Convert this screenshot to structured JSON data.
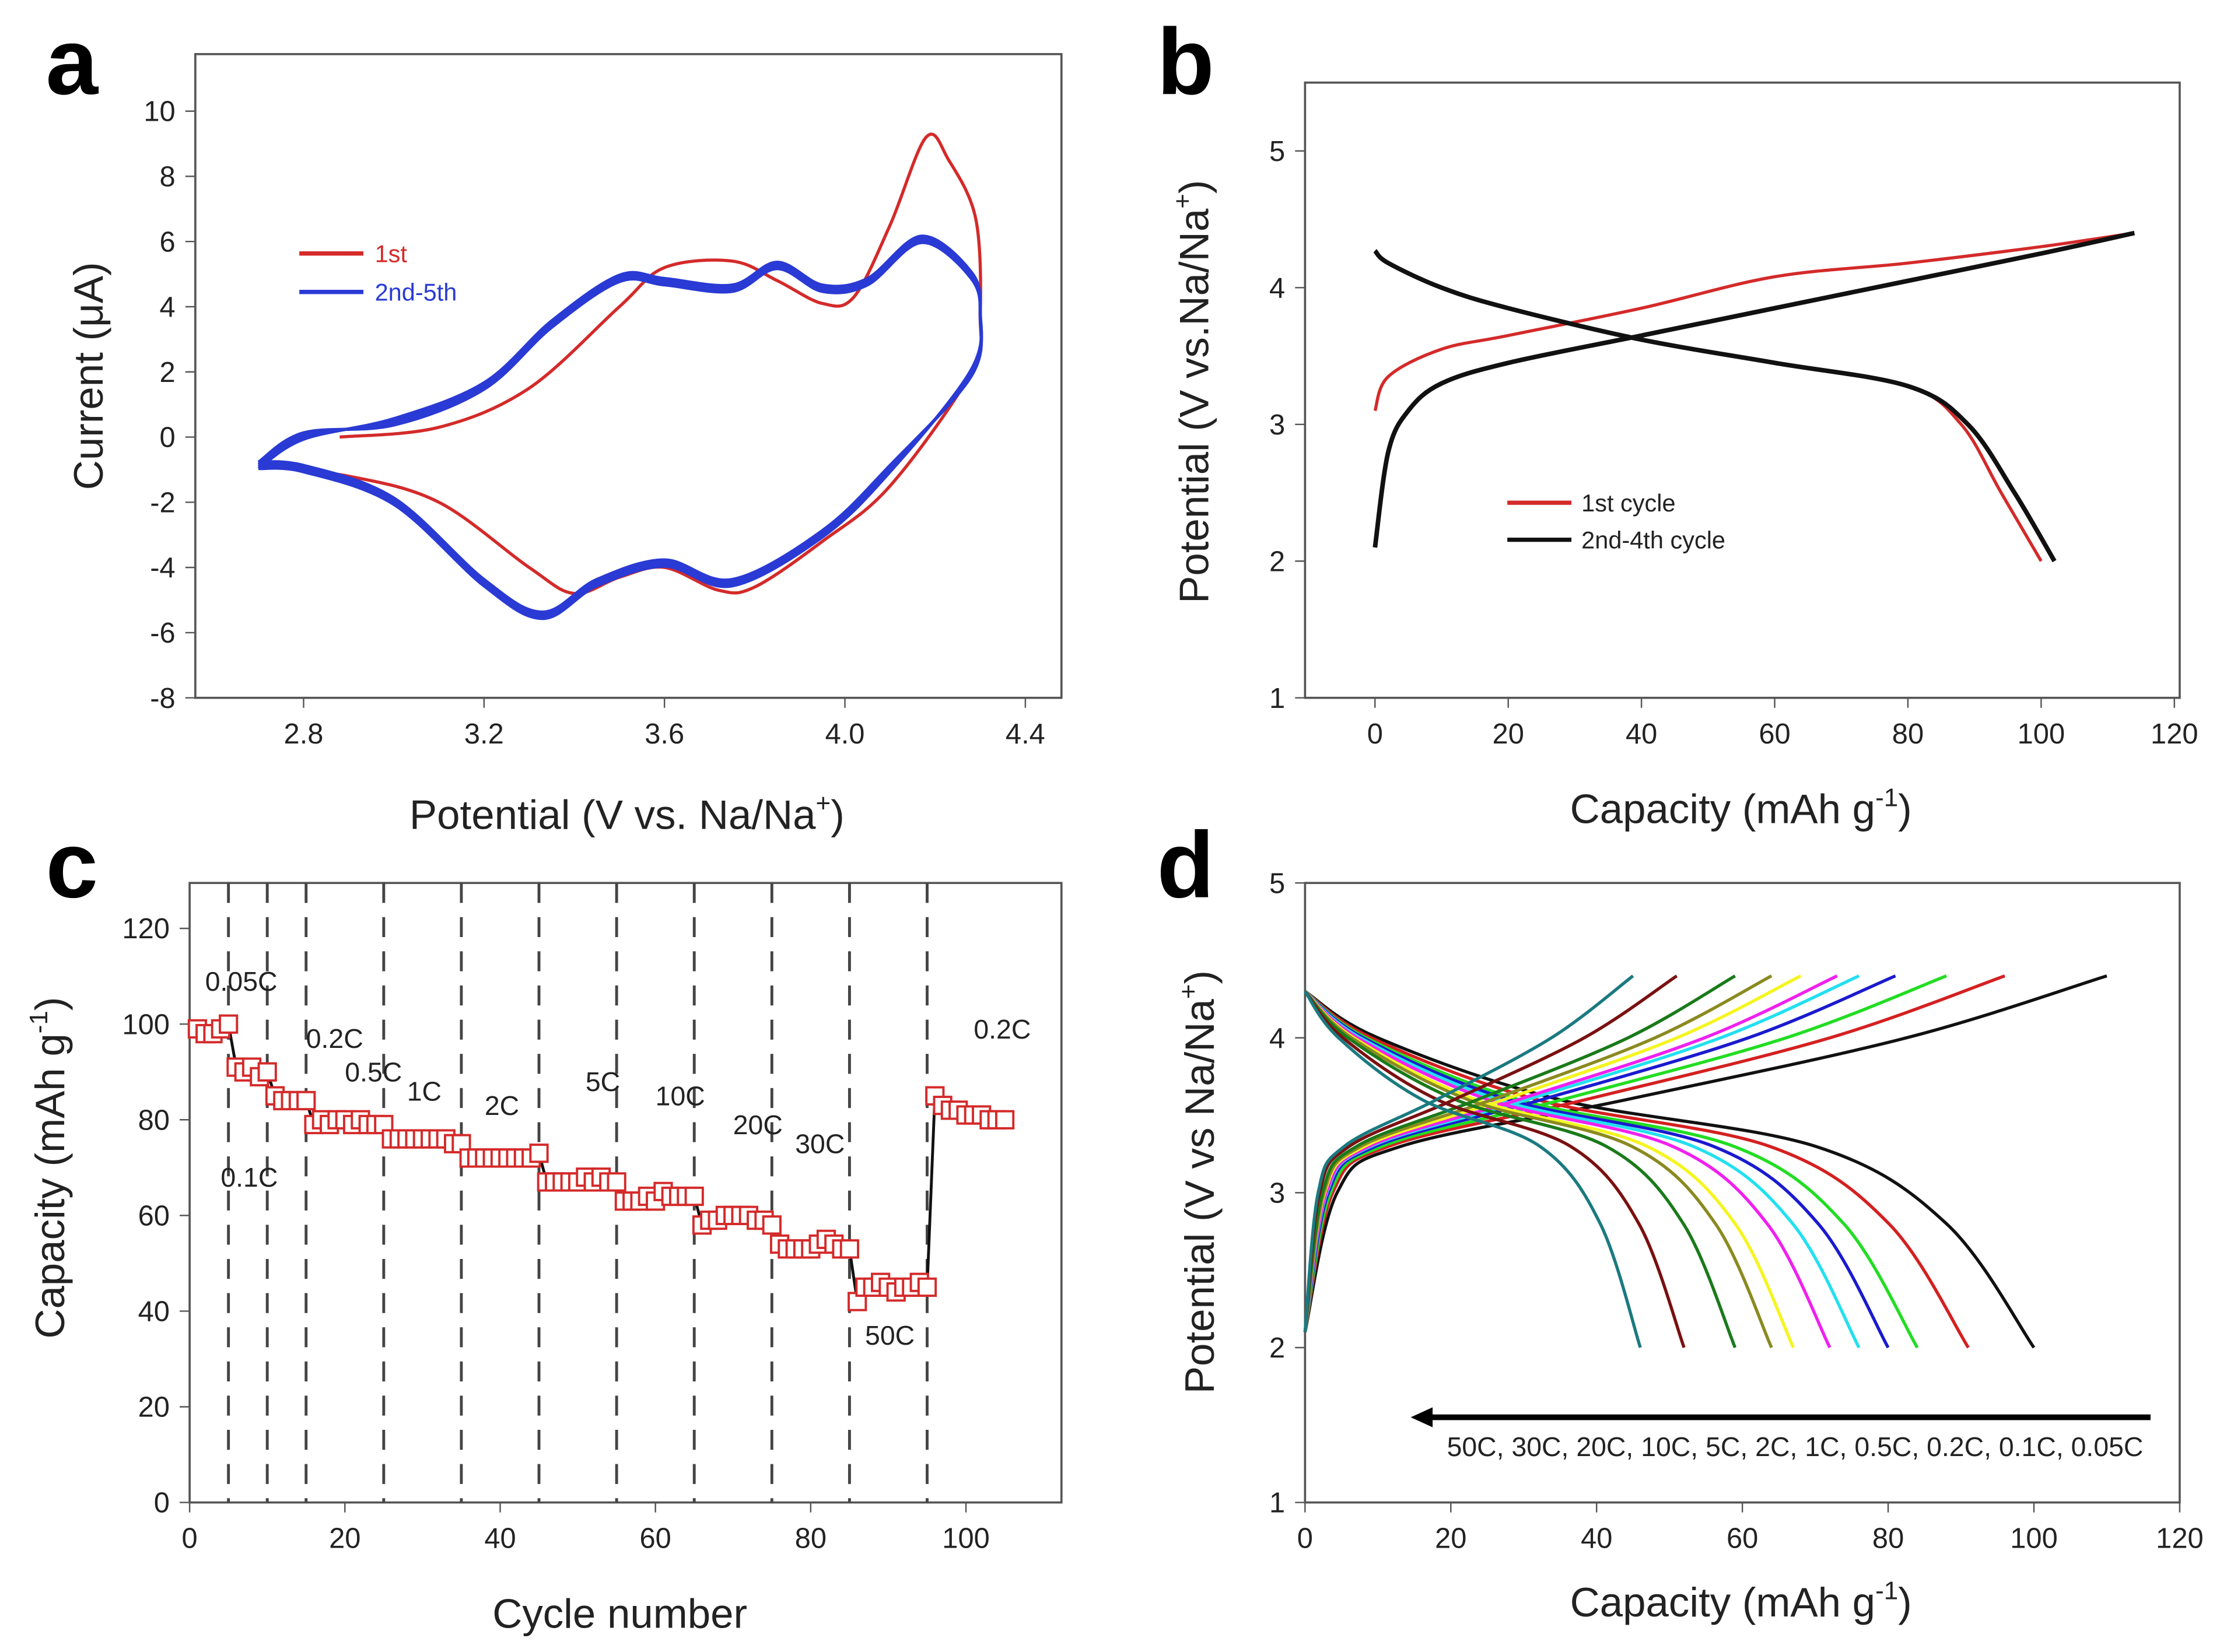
{
  "panels": [
    "a",
    "b",
    "c",
    "d"
  ],
  "chart_data": [
    {
      "type": "line",
      "panel": "a",
      "xlabel": "Potential (V vs. Na/Na",
      "xlabel_sup": "+",
      "xlabel_end": ")",
      "ylabel": "Current (μA)",
      "xlim": [
        2.56,
        4.48
      ],
      "ylim": [
        -8,
        11.75
      ],
      "xticks": [
        "2.8",
        "3.2",
        "3.6",
        "4.0",
        "4.4"
      ],
      "yticks": [
        "-8",
        "-6",
        "-4",
        "-2",
        "0",
        "2",
        "4",
        "6",
        "8",
        "10"
      ],
      "legend_position": "upper-left",
      "series": [
        {
          "name": "1st",
          "color": "#d42a2a",
          "x": [
            2.88,
            3.1,
            3.3,
            3.5,
            3.6,
            3.75,
            3.85,
            3.95,
            4.02,
            4.1,
            4.18,
            4.23,
            4.29,
            4.3,
            4.28,
            4.1,
            3.95,
            3.8,
            3.72,
            3.6,
            3.5,
            3.4,
            3.3,
            3.1,
            2.9,
            2.7
          ],
          "y": [
            0,
            0.3,
            1.5,
            4,
            5.2,
            5.4,
            4.8,
            4.1,
            4.3,
            6.5,
            9.2,
            8.5,
            6.7,
            3.8,
            2,
            -1.5,
            -3.2,
            -4.6,
            -4.7,
            -4.0,
            -4.3,
            -4.8,
            -4.0,
            -2,
            -1.2,
            -0.9
          ]
        },
        {
          "name": "2nd-5th",
          "color": "#2a3ad4",
          "x": [
            2.7,
            2.8,
            3.0,
            3.2,
            3.35,
            3.5,
            3.6,
            3.75,
            3.85,
            3.95,
            4.05,
            4.17,
            4.28,
            4.3,
            4.28,
            4.1,
            3.95,
            3.75,
            3.6,
            3.45,
            3.33,
            3.2,
            3.0,
            2.8,
            2.7
          ],
          "y": [
            -0.9,
            0,
            0.5,
            1.6,
            3.5,
            4.9,
            4.8,
            4.6,
            5.3,
            4.6,
            4.8,
            6.1,
            5,
            3.8,
            2,
            -1,
            -3,
            -4.5,
            -3.9,
            -4.5,
            -5.5,
            -4.5,
            -2,
            -1.0,
            -0.9
          ]
        }
      ]
    },
    {
      "type": "line",
      "panel": "b",
      "xlabel": "Capacity (mAh g",
      "xlabel_sup": "-1",
      "xlabel_end": ")",
      "ylabel": "Potential (V vs.Na/Na",
      "ylabel_sup": "+",
      "ylabel_end": ")",
      "xlim": [
        -10.5,
        120.8
      ],
      "ylim": [
        1,
        5.5
      ],
      "xticks": [
        "0",
        "20",
        "40",
        "60",
        "80",
        "100",
        "120"
      ],
      "yticks": [
        "1",
        "2",
        "3",
        "4",
        "5"
      ],
      "legend_position": "lower-left",
      "series": [
        {
          "name": "1st cycle",
          "color": "#d42a2a",
          "charge": {
            "x": [
              0,
              2,
              10,
              20,
              40,
              60,
              80,
              100,
              114
            ],
            "y": [
              3.1,
              3.35,
              3.55,
              3.65,
              3.85,
              4.08,
              4.18,
              4.3,
              4.4
            ]
          },
          "discharge": {
            "x": [
              0,
              2,
              10,
              20,
              40,
              60,
              80,
              88,
              94,
              100
            ],
            "y": [
              4.27,
              4.18,
              4.0,
              3.85,
              3.62,
              3.45,
              3.28,
              3.0,
              2.5,
              2.0
            ]
          }
        },
        {
          "name": "2nd-4th cycle",
          "color": "#111111",
          "charge": {
            "x": [
              0,
              2,
              5,
              10,
              20,
              40,
              60,
              80,
              100,
              114
            ],
            "y": [
              2.1,
              2.8,
              3.1,
              3.3,
              3.45,
              3.65,
              3.85,
              4.05,
              4.25,
              4.4
            ]
          },
          "discharge": {
            "x": [
              0,
              2,
              10,
              20,
              40,
              60,
              80,
              89,
              96,
              102
            ],
            "y": [
              4.27,
              4.18,
              4.0,
              3.85,
              3.62,
              3.45,
              3.28,
              3.0,
              2.5,
              2.0
            ]
          }
        }
      ]
    },
    {
      "type": "scatter",
      "panel": "c",
      "xlabel": "Cycle number",
      "ylabel": "Capacity (mAh g",
      "ylabel_sup": "-1",
      "ylabel_end": ")",
      "xlim": [
        0,
        112.3
      ],
      "ylim": [
        0,
        129.5
      ],
      "xticks": [
        "0",
        "20",
        "40",
        "60",
        "80",
        "100"
      ],
      "yticks": [
        "0",
        "20",
        "40",
        "60",
        "80",
        "100",
        "120"
      ],
      "marker_color": "#d42a2a",
      "line_color": "#111111",
      "rate_boundaries": [
        5,
        10,
        15,
        25,
        35,
        45,
        55,
        65,
        75,
        85,
        95
      ],
      "rate_labels": [
        "0.05C",
        "0.1C",
        "0.2C",
        "0.5C",
        "1C",
        "2C",
        "5C",
        "10C",
        "20C",
        "30C",
        "50C",
        "0.2C"
      ],
      "values": [
        99,
        98,
        98,
        99,
        100,
        91,
        90,
        91,
        89,
        90,
        85,
        84,
        84,
        84,
        84,
        79,
        80,
        79,
        80,
        80,
        79,
        80,
        79,
        79,
        79,
        76,
        76,
        76,
        76,
        76,
        76,
        76,
        76,
        75,
        75,
        72,
        72,
        72,
        72,
        72,
        72,
        72,
        72,
        72,
        73,
        67,
        67,
        67,
        67,
        67,
        68,
        67,
        68,
        67,
        67,
        63,
        63,
        63,
        64,
        63,
        65,
        64,
        64,
        64,
        64,
        58,
        59,
        59,
        60,
        60,
        60,
        60,
        59,
        59,
        58,
        54,
        53,
        53,
        53,
        53,
        54,
        55,
        54,
        53,
        53,
        42,
        45,
        45,
        46,
        45,
        44,
        45,
        45,
        46,
        45,
        85,
        83,
        82,
        82,
        81,
        81,
        81,
        80,
        80,
        80
      ]
    },
    {
      "type": "line",
      "panel": "d",
      "xlabel": "Capacity (mAh g",
      "xlabel_sup": "-1",
      "xlabel_end": ")",
      "ylabel": "Potential (V vs Na/Na",
      "ylabel_sup": "+",
      "ylabel_end": ")",
      "xlim": [
        0,
        120
      ],
      "ylim": [
        1,
        5
      ],
      "xticks": [
        "0",
        "20",
        "40",
        "60",
        "80",
        "100",
        "120"
      ],
      "yticks": [
        "1",
        "2",
        "3",
        "4",
        "5"
      ],
      "annotation": "50C, 30C, 20C, 10C, 5C, 2C, 1C, 0.5C, 0.2C, 0.1C, 0.05C",
      "charge_potential": [
        2.1,
        3.0,
        3.3,
        3.6,
        4.0,
        4.4
      ],
      "discharge_potential": [
        4.3,
        4.0,
        3.6,
        3.3,
        2.8,
        2.0
      ],
      "series": [
        {
          "name": "0.05C",
          "color": "#111111",
          "charge_x": [
            0,
            4.4,
            13.2,
            44,
            82.5,
            110
          ],
          "discharge_x": [
            0,
            10,
            35,
            70,
            88,
            100
          ]
        },
        {
          "name": "0.1C",
          "color": "#d42020",
          "charge_x": [
            0,
            3.8,
            11.5,
            38.4,
            72,
            96
          ],
          "discharge_x": [
            0,
            9.1,
            31.9,
            63.7,
            80.1,
            91
          ]
        },
        {
          "name": "0.2C",
          "color": "#22dd22",
          "charge_x": [
            0,
            3.5,
            10.6,
            35.2,
            66,
            88
          ],
          "discharge_x": [
            0,
            8.4,
            29.4,
            58.8,
            73.9,
            84
          ]
        },
        {
          "name": "0.5C",
          "color": "#1a1ad0",
          "charge_x": [
            0,
            3.2,
            9.7,
            32.4,
            60.8,
            81
          ],
          "discharge_x": [
            0,
            8,
            28,
            56,
            70.4,
            80
          ]
        },
        {
          "name": "1C",
          "color": "#22e0f0",
          "charge_x": [
            0,
            3,
            9.1,
            30.4,
            57,
            76
          ],
          "discharge_x": [
            0,
            7.6,
            26.6,
            53.2,
            66.9,
            76
          ]
        },
        {
          "name": "2C",
          "color": "#f020f0",
          "charge_x": [
            0,
            2.9,
            8.8,
            29.2,
            54.8,
            73
          ],
          "discharge_x": [
            0,
            7.2,
            25.2,
            50.4,
            63.4,
            72
          ]
        },
        {
          "name": "5C",
          "color": "#f5f520",
          "charge_x": [
            0,
            2.7,
            8.2,
            27.2,
            51,
            68
          ],
          "discharge_x": [
            0,
            6.7,
            23.5,
            46.9,
            59,
            67
          ]
        },
        {
          "name": "10C",
          "color": "#8a8a20",
          "charge_x": [
            0,
            2.6,
            7.7,
            25.6,
            48,
            64
          ],
          "discharge_x": [
            0,
            6.4,
            22.4,
            44.8,
            56.3,
            64
          ]
        },
        {
          "name": "20C",
          "color": "#1a7a1a",
          "charge_x": [
            0,
            2.4,
            7.1,
            23.6,
            44.3,
            59
          ],
          "discharge_x": [
            0,
            5.9,
            20.7,
            41.3,
            51.9,
            59
          ]
        },
        {
          "name": "30C",
          "color": "#7a1010",
          "charge_x": [
            0,
            2,
            6.1,
            20.4,
            38.3,
            51
          ],
          "discharge_x": [
            0,
            5.2,
            18.2,
            36.4,
            45.8,
            52
          ]
        },
        {
          "name": "50C",
          "color": "#1a7a80",
          "charge_x": [
            0,
            1.8,
            5.4,
            18,
            33.8,
            45
          ],
          "discharge_x": [
            0,
            4.6,
            16.1,
            32.2,
            40.5,
            46
          ]
        }
      ]
    }
  ]
}
